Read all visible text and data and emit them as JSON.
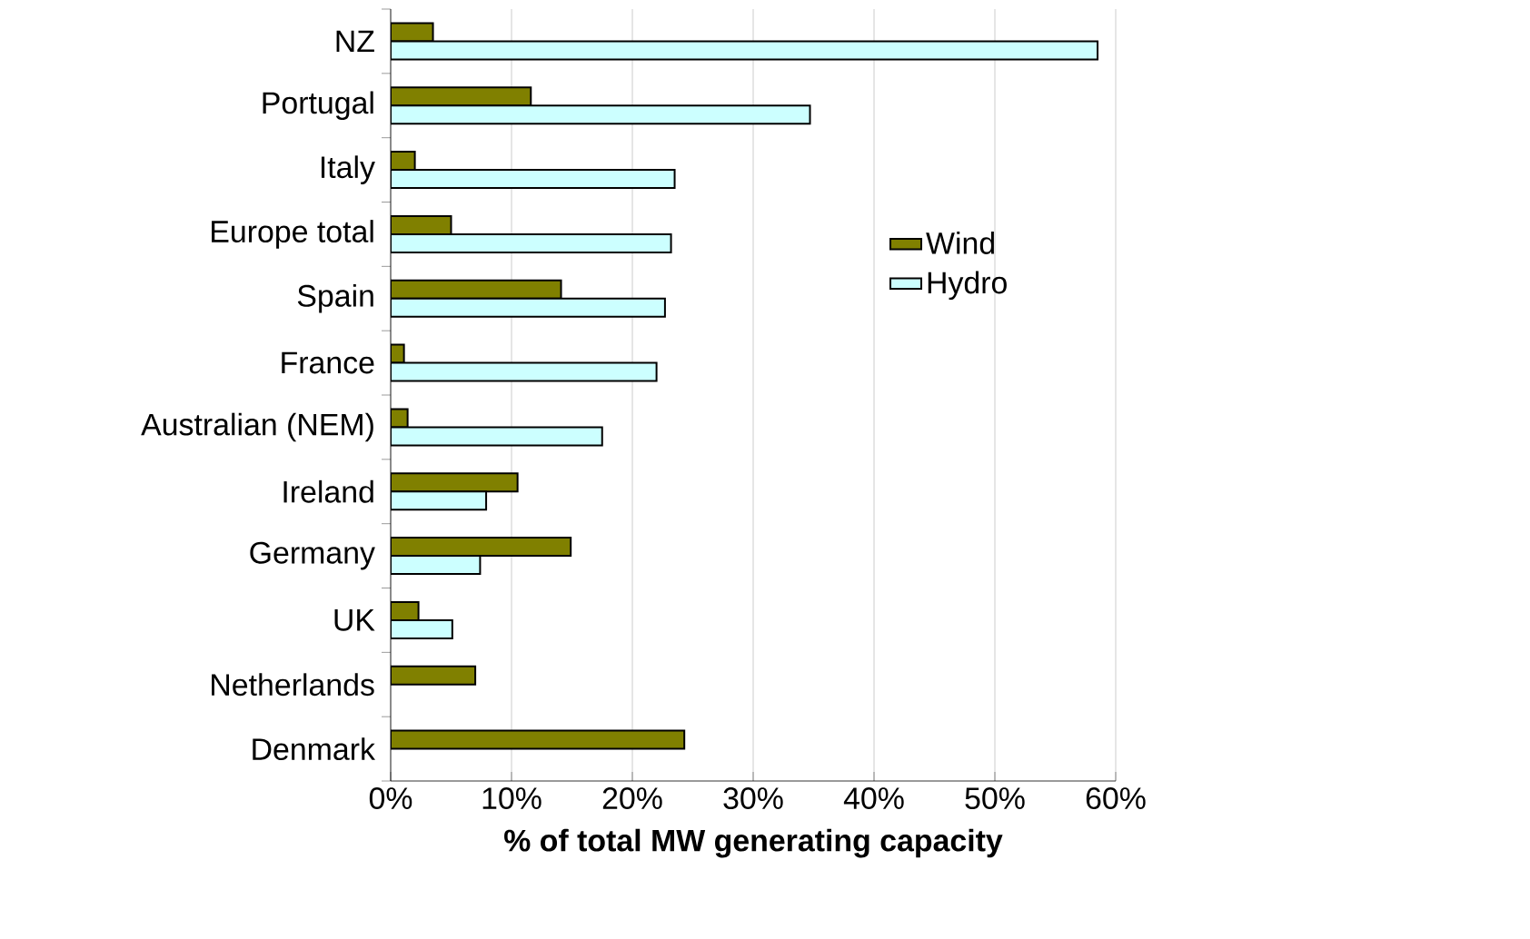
{
  "chart_data": {
    "type": "bar",
    "orientation": "horizontal",
    "xlabel": "% of total MW generating capacity",
    "categories": [
      "NZ",
      "Portugal",
      "Italy",
      "Europe total",
      "Spain",
      "France",
      "Australian (NEM)",
      "Ireland",
      "Germany",
      "UK",
      "Netherlands",
      "Denmark"
    ],
    "series": [
      {
        "name": "Wind",
        "color": "#808000",
        "values": [
          3.5,
          11.6,
          2.0,
          5.0,
          14.1,
          1.1,
          1.4,
          10.5,
          14.9,
          2.3,
          7.0,
          24.3
        ]
      },
      {
        "name": "Hydro",
        "color": "#ccffff",
        "values": [
          58.5,
          34.7,
          23.5,
          23.2,
          22.7,
          22.0,
          17.5,
          7.9,
          7.4,
          5.1,
          null,
          null
        ]
      }
    ],
    "xlim": [
      0,
      60
    ],
    "xticks": [
      {
        "value": 0,
        "label": "0%"
      },
      {
        "value": 10,
        "label": "10%"
      },
      {
        "value": 20,
        "label": "20%"
      },
      {
        "value": 30,
        "label": "30%"
      },
      {
        "value": 40,
        "label": "40%"
      },
      {
        "value": 50,
        "label": "50%"
      },
      {
        "value": 60,
        "label": "60%"
      }
    ],
    "grid": "x",
    "legend": "right"
  }
}
